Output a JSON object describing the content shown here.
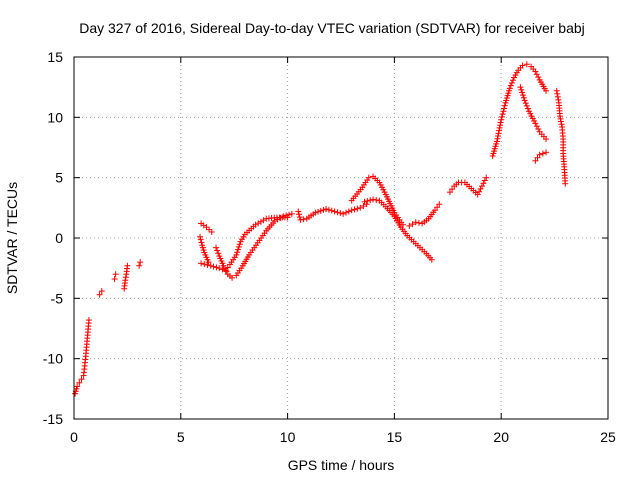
{
  "chart_data": {
    "type": "scatter",
    "title": "Day 327 of 2016, Sidereal Day-to-day VTEC variation (SDTVAR) for receiver babj",
    "xlabel": "GPS time / hours",
    "ylabel": "SDTVAR / TECUs",
    "xlim": [
      0,
      25
    ],
    "ylim": [
      -15,
      15
    ],
    "xticks": [
      0,
      5,
      10,
      15,
      20,
      25
    ],
    "yticks": [
      -15,
      -10,
      -5,
      0,
      5,
      10,
      15
    ],
    "grid": true,
    "marker": "plus",
    "color": "#ff0000",
    "series": [
      {
        "name": "SDTVAR",
        "segments": [
          [
            [
              0.05,
              -12.9
            ],
            [
              0.15,
              -12.3
            ],
            [
              0.25,
              -12.0
            ],
            [
              0.35,
              -11.7
            ],
            [
              0.45,
              -11.4
            ],
            [
              0.5,
              -10.6
            ],
            [
              0.55,
              -9.8
            ],
            [
              0.6,
              -8.8
            ],
            [
              0.65,
              -7.8
            ],
            [
              0.7,
              -6.8
            ]
          ],
          [
            [
              1.2,
              -4.7
            ],
            [
              1.3,
              -4.4
            ]
          ],
          [
            [
              1.9,
              -3.4
            ],
            [
              1.95,
              -3.0
            ]
          ],
          [
            [
              2.35,
              -4.2
            ],
            [
              2.4,
              -3.5
            ],
            [
              2.45,
              -3.0
            ],
            [
              2.5,
              -2.3
            ]
          ],
          [
            [
              3.05,
              -2.3
            ],
            [
              3.1,
              -2.0
            ]
          ],
          [
            [
              5.9,
              0.1
            ],
            [
              6.0,
              -0.6
            ],
            [
              6.1,
              -1.2
            ],
            [
              6.3,
              -2.0
            ]
          ],
          [
            [
              5.95,
              -2.1
            ],
            [
              6.4,
              -2.3
            ],
            [
              6.8,
              -2.5
            ],
            [
              7.1,
              -2.7
            ],
            [
              7.3,
              -2.2
            ],
            [
              7.6,
              -1.4
            ],
            [
              7.8,
              -0.3
            ],
            [
              8.0,
              0.3
            ],
            [
              8.5,
              1.1
            ],
            [
              9.0,
              1.6
            ],
            [
              9.5,
              1.7
            ],
            [
              10.0,
              1.7
            ]
          ],
          [
            [
              5.95,
              1.2
            ],
            [
              6.2,
              0.9
            ],
            [
              6.45,
              0.5
            ]
          ],
          [
            [
              6.65,
              -0.8
            ],
            [
              6.8,
              -1.5
            ],
            [
              7.0,
              -2.3
            ],
            [
              7.2,
              -3.0
            ],
            [
              7.4,
              -3.3
            ],
            [
              7.6,
              -3.1
            ],
            [
              7.9,
              -2.3
            ],
            [
              8.2,
              -1.4
            ],
            [
              8.6,
              -0.4
            ],
            [
              9.0,
              0.6
            ],
            [
              9.4,
              1.4
            ],
            [
              9.8,
              1.8
            ],
            [
              10.2,
              2.0
            ]
          ],
          [
            [
              10.5,
              2.2
            ],
            [
              10.6,
              1.5
            ],
            [
              10.9,
              1.6
            ],
            [
              11.3,
              2.1
            ],
            [
              11.8,
              2.4
            ],
            [
              12.2,
              2.2
            ],
            [
              12.6,
              2.0
            ],
            [
              13.0,
              2.3
            ],
            [
              13.4,
              2.5
            ],
            [
              13.7,
              2.8
            ]
          ],
          [
            [
              13.0,
              3.1
            ],
            [
              13.5,
              4.2
            ],
            [
              13.8,
              5.0
            ],
            [
              14.0,
              5.1
            ],
            [
              14.3,
              4.6
            ],
            [
              14.6,
              3.6
            ],
            [
              15.0,
              2.1
            ],
            [
              15.4,
              1.1
            ]
          ],
          [
            [
              13.6,
              3.0
            ],
            [
              14.0,
              3.2
            ],
            [
              14.3,
              3.1
            ],
            [
              14.6,
              2.6
            ],
            [
              15.0,
              1.8
            ],
            [
              15.3,
              0.9
            ],
            [
              15.6,
              0.2
            ],
            [
              15.9,
              -0.3
            ],
            [
              16.2,
              -0.8
            ],
            [
              16.5,
              -1.3
            ],
            [
              16.75,
              -1.8
            ]
          ],
          [
            [
              15.7,
              1.0
            ],
            [
              16.0,
              1.3
            ],
            [
              16.3,
              1.2
            ],
            [
              16.6,
              1.6
            ],
            [
              16.9,
              2.3
            ],
            [
              17.1,
              2.8
            ]
          ],
          [
            [
              17.6,
              3.8
            ],
            [
              17.8,
              4.3
            ],
            [
              18.0,
              4.6
            ],
            [
              18.3,
              4.6
            ],
            [
              18.6,
              4.1
            ],
            [
              18.9,
              3.6
            ],
            [
              19.1,
              4.3
            ],
            [
              19.3,
              5.0
            ]
          ],
          [
            [
              19.6,
              6.8
            ],
            [
              19.8,
              8.0
            ],
            [
              20.0,
              9.8
            ],
            [
              20.2,
              11.2
            ],
            [
              20.4,
              12.4
            ],
            [
              20.6,
              13.3
            ],
            [
              20.8,
              13.9
            ],
            [
              21.0,
              14.3
            ],
            [
              21.2,
              14.4
            ],
            [
              21.4,
              14.2
            ],
            [
              21.6,
              13.8
            ],
            [
              21.8,
              13.1
            ],
            [
              22.1,
              12.2
            ]
          ],
          [
            [
              20.9,
              12.5
            ],
            [
              21.1,
              11.4
            ],
            [
              21.3,
              10.5
            ],
            [
              21.6,
              9.5
            ],
            [
              21.8,
              8.8
            ],
            [
              22.1,
              8.2
            ]
          ],
          [
            [
              21.6,
              6.4
            ],
            [
              21.8,
              6.9
            ],
            [
              22.1,
              7.1
            ]
          ],
          [
            [
              22.6,
              12.2
            ],
            [
              22.7,
              11.2
            ],
            [
              22.75,
              10.1
            ],
            [
              22.85,
              9.2
            ],
            [
              22.9,
              8.2
            ],
            [
              22.9,
              7.0
            ],
            [
              22.95,
              5.9
            ],
            [
              23.0,
              4.5
            ]
          ]
        ]
      }
    ]
  }
}
